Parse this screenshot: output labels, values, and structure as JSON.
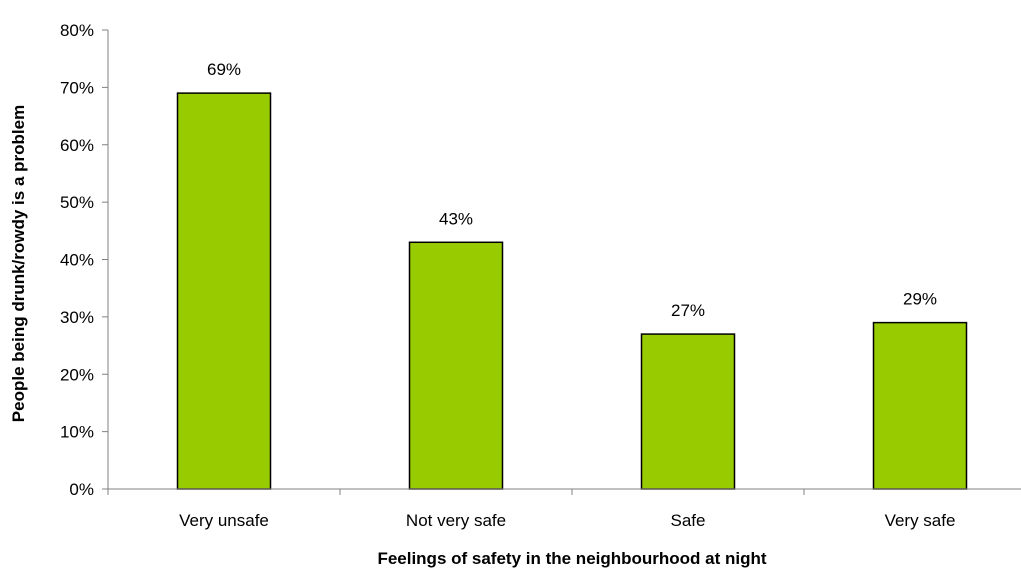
{
  "chart_data": {
    "type": "bar",
    "title": "",
    "xlabel": "Feelings of safety in the neighbourhood at night",
    "ylabel": "People being drunk/rowdy is a problem",
    "categories": [
      "Very unsafe",
      "Not very safe",
      "Safe",
      "Very safe"
    ],
    "values": [
      69,
      43,
      27,
      29
    ],
    "value_labels": [
      "69%",
      "43%",
      "27%",
      "29%"
    ],
    "ylim": [
      0,
      80
    ],
    "yticks": [
      0,
      10,
      20,
      30,
      40,
      50,
      60,
      70,
      80
    ],
    "ytick_labels": [
      "0%",
      "10%",
      "20%",
      "30%",
      "40%",
      "50%",
      "60%",
      "70%",
      "80%"
    ],
    "grid": false,
    "legend": "none",
    "colors": {
      "bar_fill": "#99cc00",
      "bar_stroke": "#000000",
      "axis": "#808080"
    }
  }
}
